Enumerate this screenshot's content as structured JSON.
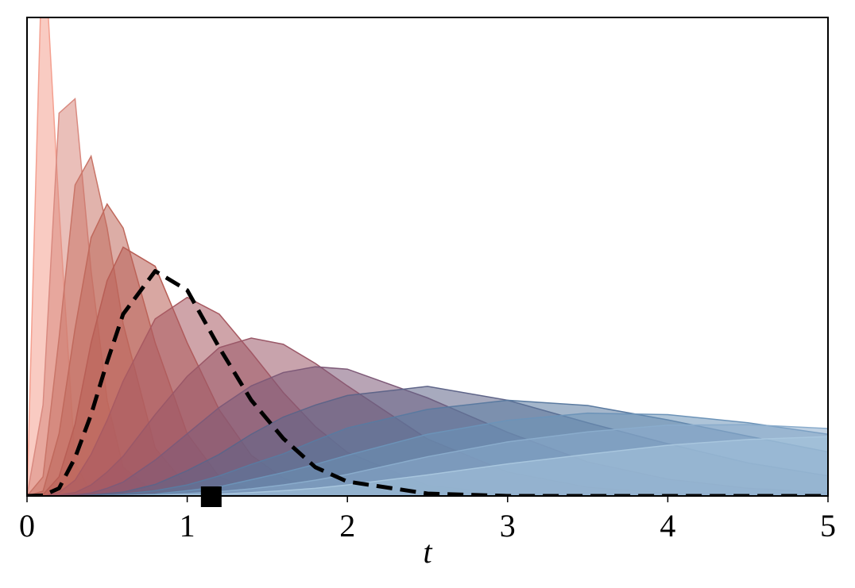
{
  "chart_data": {
    "type": "area",
    "x_label": "t",
    "x": [
      0,
      0.1,
      0.2,
      0.3,
      0.4,
      0.5,
      0.6,
      0.8,
      1.0,
      1.2,
      1.4,
      1.6,
      1.8,
      2.0,
      2.5,
      3.0,
      3.5,
      4.0,
      4.5,
      5.0
    ],
    "xlim": [
      0,
      5
    ],
    "xticks": [
      0,
      1,
      2,
      3,
      4,
      5
    ],
    "ylim": [
      0,
      100
    ],
    "fill_opacity": 0.55,
    "series": [
      {
        "color": "#f4a090",
        "values": [
          0,
          120,
          60,
          7,
          0.5,
          0,
          0,
          0,
          0,
          0,
          0,
          0,
          0,
          0,
          0,
          0,
          0,
          0,
          0,
          0
        ]
      },
      {
        "color": "#d98a80",
        "values": [
          0,
          19,
          80,
          83,
          47,
          20,
          6,
          0.6,
          0,
          0,
          0,
          0,
          0,
          0,
          0,
          0,
          0,
          0,
          0,
          0
        ]
      },
      {
        "color": "#c97568",
        "values": [
          0,
          4,
          33,
          65,
          71,
          56,
          36,
          10,
          2,
          0.4,
          0,
          0,
          0,
          0,
          0,
          0,
          0,
          0,
          0,
          0
        ]
      },
      {
        "color": "#c0695c",
        "values": [
          0,
          1,
          13,
          35,
          54,
          61,
          56,
          32,
          13,
          4,
          1.2,
          0.4,
          0,
          0,
          0,
          0,
          0,
          0,
          0,
          0
        ]
      },
      {
        "color": "#b85e55",
        "values": [
          0,
          0.3,
          4,
          15,
          32,
          45,
          52,
          48,
          32,
          18,
          8.5,
          3.7,
          1.4,
          0.5,
          0,
          0,
          0,
          0,
          0,
          0
        ]
      },
      {
        "color": "#a85a62",
        "values": [
          0,
          0,
          0.7,
          3.3,
          8.7,
          15.8,
          24,
          37,
          41.5,
          38,
          30,
          21.6,
          14.5,
          9.1,
          2.2,
          0.5,
          0.1,
          0,
          0,
          0
        ]
      },
      {
        "color": "#9a5868",
        "values": [
          0,
          0,
          0.2,
          0.7,
          2.3,
          5,
          8.3,
          17,
          25,
          31,
          33,
          31.7,
          27.7,
          23,
          11.9,
          5,
          1.8,
          0.6,
          0.2,
          0.1
        ]
      },
      {
        "color": "#7e5a78",
        "values": [
          0,
          0,
          0,
          0.2,
          0.6,
          1.6,
          2.9,
          7.5,
          13,
          18.5,
          23,
          25.8,
          27,
          26.5,
          20.5,
          13.3,
          7.1,
          3.5,
          1.6,
          0.7
        ]
      },
      {
        "color": "#5e6488",
        "values": [
          0,
          0,
          0,
          0,
          0.2,
          0.5,
          0.8,
          2.4,
          5.3,
          8.7,
          12.9,
          16.5,
          19,
          21,
          22.9,
          20,
          15.3,
          10.9,
          6.9,
          4.2
        ]
      },
      {
        "color": "#5a7aa0",
        "values": [
          0,
          0,
          0,
          0,
          0.1,
          0.2,
          0.4,
          1.1,
          2.3,
          4.2,
          6.6,
          8.8,
          11.6,
          14.2,
          18.1,
          20,
          18.9,
          15.9,
          12.5,
          9.2
        ]
      },
      {
        "color": "#6c93b8",
        "values": [
          0,
          0,
          0,
          0,
          0,
          0.1,
          0.1,
          0.4,
          1.1,
          1.9,
          3.4,
          4.9,
          6.6,
          8.5,
          12.9,
          15.8,
          17.3,
          17,
          15.3,
          12.9
        ]
      },
      {
        "color": "#8aaccc",
        "values": [
          0,
          0,
          0,
          0,
          0,
          0,
          0.1,
          0.2,
          0.5,
          0.9,
          1.5,
          2.3,
          3.3,
          4.5,
          8.2,
          11.3,
          13.4,
          14.8,
          14.9,
          14.1
        ]
      },
      {
        "color": "#a8c6de",
        "values": [
          0,
          0,
          0,
          0,
          0,
          0,
          0,
          0.1,
          0.2,
          0.4,
          0.7,
          1.1,
          1.6,
          2.3,
          4.4,
          6.7,
          8.7,
          10.6,
          11.8,
          12.4
        ]
      }
    ],
    "highlight": {
      "color": "#000000",
      "linestyle": "dashed",
      "values": [
        0,
        0.1,
        1.6,
        8,
        17,
        28,
        38,
        47,
        43,
        31,
        20,
        12,
        6,
        3,
        0.5,
        0,
        0,
        0,
        0,
        0
      ]
    },
    "marker": {
      "x": 1.15,
      "y": 0,
      "color": "#000000"
    }
  }
}
